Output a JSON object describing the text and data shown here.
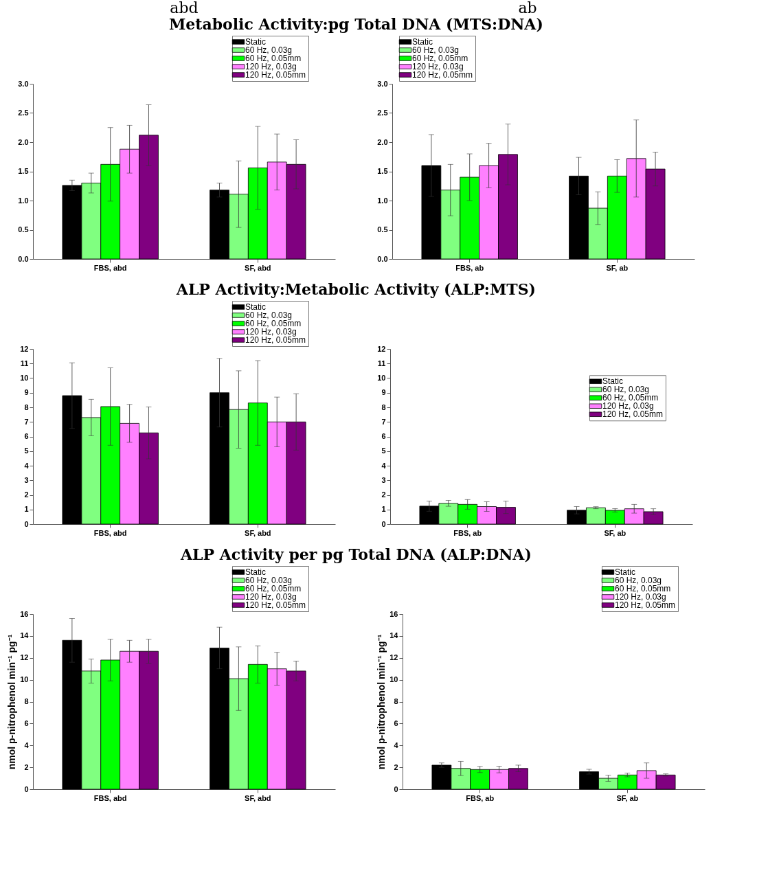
{
  "chart_data": [
    {
      "type": "bar",
      "title": "Metabolic Activity:pg Total DNA (MTS:DNA)",
      "annotations": [
        "abd"
      ],
      "categories": [
        "FBS, abd",
        "SF, abd"
      ],
      "ylim": [
        0,
        3
      ],
      "yticks": [
        {
          "value": 0,
          "label": "0.0"
        },
        0.5,
        {
          "value": 1,
          "label": "1.0"
        },
        1.5,
        {
          "value": 2,
          "label": "2.0"
        },
        2.5,
        {
          "value": 3,
          "label": "3.0"
        }
      ],
      "legend": "top right",
      "series": [
        {
          "name": "Static",
          "color": "#000000",
          "values": [
            1.26,
            1.18
          ],
          "errors": [
            0.09,
            0.12
          ]
        },
        {
          "name": "60 Hz, 0.03g",
          "color": "#80ff80",
          "values": [
            1.3,
            1.11
          ],
          "errors": [
            0.17,
            0.57
          ]
        },
        {
          "name": "60 Hz, 0.05mm",
          "color": "#00ff00",
          "values": [
            1.62,
            1.56
          ],
          "errors": [
            0.63,
            0.71
          ]
        },
        {
          "name": "120 Hz, 0.03g",
          "color": "#ff80ff",
          "values": [
            1.88,
            1.66
          ],
          "errors": [
            0.41,
            0.48
          ]
        },
        {
          "name": "120 Hz, 0.05mm",
          "color": "#800080",
          "values": [
            2.12,
            1.62
          ],
          "errors": [
            0.52,
            0.42
          ]
        }
      ]
    },
    {
      "type": "bar",
      "annotations": [
        "ab"
      ],
      "categories": [
        "FBS, ab",
        "SF, ab"
      ],
      "ylim": [
        0,
        3
      ],
      "yticks": [
        {
          "value": 0,
          "label": "0.0"
        },
        0.5,
        {
          "value": 1,
          "label": "1.0"
        },
        1.5,
        {
          "value": 2,
          "label": "2.0"
        },
        2.5,
        {
          "value": 3,
          "label": "3.0"
        }
      ],
      "legend": "top left",
      "series": [
        {
          "name": "Static",
          "color": "#000000",
          "values": [
            1.6,
            1.42
          ],
          "errors": [
            0.53,
            0.32
          ]
        },
        {
          "name": "60 Hz, 0.03g",
          "color": "#80ff80",
          "values": [
            1.18,
            0.87
          ],
          "errors": [
            0.44,
            0.28
          ]
        },
        {
          "name": "60 Hz, 0.05mm",
          "color": "#00ff00",
          "values": [
            1.4,
            1.42
          ],
          "errors": [
            0.4,
            0.28
          ]
        },
        {
          "name": "120 Hz, 0.03g",
          "color": "#ff80ff",
          "values": [
            1.6,
            1.72
          ],
          "errors": [
            0.38,
            0.66
          ]
        },
        {
          "name": "120 Hz, 0.05mm",
          "color": "#800080",
          "values": [
            1.79,
            1.54
          ],
          "errors": [
            0.52,
            0.29
          ]
        }
      ]
    },
    {
      "type": "bar",
      "title": "ALP Activity:Metabolic Activity (ALP:MTS)",
      "categories": [
        "FBS, abd",
        "SF, abd"
      ],
      "ylim": [
        0,
        12
      ],
      "yticks": [
        0,
        1,
        2,
        3,
        4,
        5,
        6,
        7,
        8,
        9,
        10,
        11,
        12
      ],
      "legend": "top right",
      "series": [
        {
          "name": "Static",
          "color": "#000000",
          "values": [
            8.8,
            9.0
          ],
          "errors": [
            2.25,
            2.35
          ]
        },
        {
          "name": "60 Hz, 0.03g",
          "color": "#80ff80",
          "values": [
            7.3,
            7.85
          ],
          "errors": [
            1.25,
            2.65
          ]
        },
        {
          "name": "60 Hz, 0.05mm",
          "color": "#00ff00",
          "values": [
            8.05,
            8.3
          ],
          "errors": [
            2.65,
            2.9
          ]
        },
        {
          "name": "120 Hz, 0.03g",
          "color": "#ff80ff",
          "values": [
            6.9,
            7.0
          ],
          "errors": [
            1.3,
            1.7
          ]
        },
        {
          "name": "120 Hz, 0.05mm",
          "color": "#800080",
          "values": [
            6.25,
            7.0
          ],
          "errors": [
            1.78,
            1.93
          ]
        }
      ]
    },
    {
      "type": "bar",
      "categories": [
        "FBS, ab",
        "SF, ab"
      ],
      "ylim": [
        0,
        12
      ],
      "yticks": [
        0,
        1,
        2,
        3,
        4,
        5,
        6,
        7,
        8,
        9,
        10,
        11,
        12
      ],
      "legend": "right",
      "series": [
        {
          "name": "Static",
          "color": "#000000",
          "values": [
            1.23,
            0.95
          ],
          "errors": [
            0.35,
            0.25
          ]
        },
        {
          "name": "60 Hz, 0.03g",
          "color": "#80ff80",
          "values": [
            1.42,
            1.12
          ],
          "errors": [
            0.2,
            0.07
          ]
        },
        {
          "name": "60 Hz, 0.05mm",
          "color": "#00ff00",
          "values": [
            1.35,
            0.94
          ],
          "errors": [
            0.33,
            0.12
          ]
        },
        {
          "name": "120 Hz, 0.03g",
          "color": "#ff80ff",
          "values": [
            1.2,
            1.05
          ],
          "errors": [
            0.33,
            0.3
          ]
        },
        {
          "name": "120 Hz, 0.05mm",
          "color": "#800080",
          "values": [
            1.15,
            0.85
          ],
          "errors": [
            0.43,
            0.2
          ]
        }
      ]
    },
    {
      "type": "bar",
      "title": "ALP Activity per pg Total DNA (ALP:DNA)",
      "ylabel": "nmol p-nitrophenol min⁻¹ pg⁻¹",
      "categories": [
        "FBS, abd",
        "SF, abd"
      ],
      "ylim": [
        0,
        16
      ],
      "yticks": [
        0,
        2,
        4,
        6,
        8,
        10,
        12,
        14,
        16
      ],
      "legend": "top right",
      "series": [
        {
          "name": "Static",
          "color": "#000000",
          "values": [
            13.6,
            12.9
          ],
          "errors": [
            2.0,
            1.9
          ]
        },
        {
          "name": "60 Hz, 0.03g",
          "color": "#80ff80",
          "values": [
            10.8,
            10.1
          ],
          "errors": [
            1.1,
            2.9
          ]
        },
        {
          "name": "60 Hz, 0.05mm",
          "color": "#00ff00",
          "values": [
            11.8,
            11.4
          ],
          "errors": [
            1.9,
            1.7
          ]
        },
        {
          "name": "120 Hz, 0.03g",
          "color": "#ff80ff",
          "values": [
            12.6,
            11.0
          ],
          "errors": [
            1.0,
            1.5
          ]
        },
        {
          "name": "120 Hz, 0.05mm",
          "color": "#800080",
          "values": [
            12.6,
            10.8
          ],
          "errors": [
            1.1,
            0.9
          ]
        }
      ]
    },
    {
      "type": "bar",
      "ylabel": "nmol p-nitrophenol min⁻¹ pg⁻¹",
      "categories": [
        "FBS, ab",
        "SF, ab"
      ],
      "ylim": [
        0,
        16
      ],
      "yticks": [
        0,
        2,
        4,
        6,
        8,
        10,
        12,
        14,
        16
      ],
      "legend": "top right",
      "series": [
        {
          "name": "Static",
          "color": "#000000",
          "values": [
            2.2,
            1.6
          ],
          "errors": [
            0.2,
            0.22
          ]
        },
        {
          "name": "60 Hz, 0.03g",
          "color": "#80ff80",
          "values": [
            1.9,
            1.0
          ],
          "errors": [
            0.65,
            0.28
          ]
        },
        {
          "name": "60 Hz, 0.05mm",
          "color": "#00ff00",
          "values": [
            1.8,
            1.3
          ],
          "errors": [
            0.28,
            0.17
          ]
        },
        {
          "name": "120 Hz, 0.03g",
          "color": "#ff80ff",
          "values": [
            1.8,
            1.7
          ],
          "errors": [
            0.3,
            0.7
          ]
        },
        {
          "name": "120 Hz, 0.05mm",
          "color": "#800080",
          "values": [
            1.9,
            1.3
          ],
          "errors": [
            0.3,
            0.1
          ]
        }
      ]
    }
  ]
}
